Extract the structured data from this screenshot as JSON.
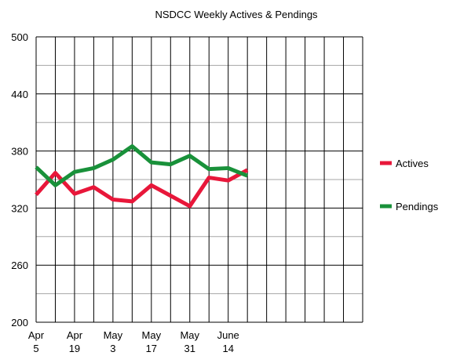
{
  "chart_data": {
    "type": "line",
    "title": "NSDCC Weekly Actives & Pendings",
    "xlabel": "",
    "ylabel": "",
    "ylim": [
      200,
      500
    ],
    "yticks": [
      200,
      260,
      320,
      380,
      440,
      500
    ],
    "x_index_range": [
      0,
      17
    ],
    "x_tick_labels": [
      {
        "index": 0,
        "line1": "Apr",
        "line2": "5"
      },
      {
        "index": 2,
        "line1": "Apr",
        "line2": "19"
      },
      {
        "index": 4,
        "line1": "May",
        "line2": "3"
      },
      {
        "index": 6,
        "line1": "May",
        "line2": "17"
      },
      {
        "index": 8,
        "line1": "May",
        "line2": "31"
      },
      {
        "index": 10,
        "line1": "June",
        "line2": "14"
      }
    ],
    "grid": true,
    "legend_position": "right",
    "series": [
      {
        "name": "Actives",
        "color": "#e8173a",
        "values": [
          334,
          357,
          335,
          342,
          329,
          327,
          344,
          333,
          322,
          352,
          349,
          360
        ]
      },
      {
        "name": "Pendings",
        "color": "#19913a",
        "values": [
          363,
          344,
          358,
          362,
          371,
          385,
          368,
          366,
          375,
          361,
          362,
          354
        ]
      }
    ]
  }
}
